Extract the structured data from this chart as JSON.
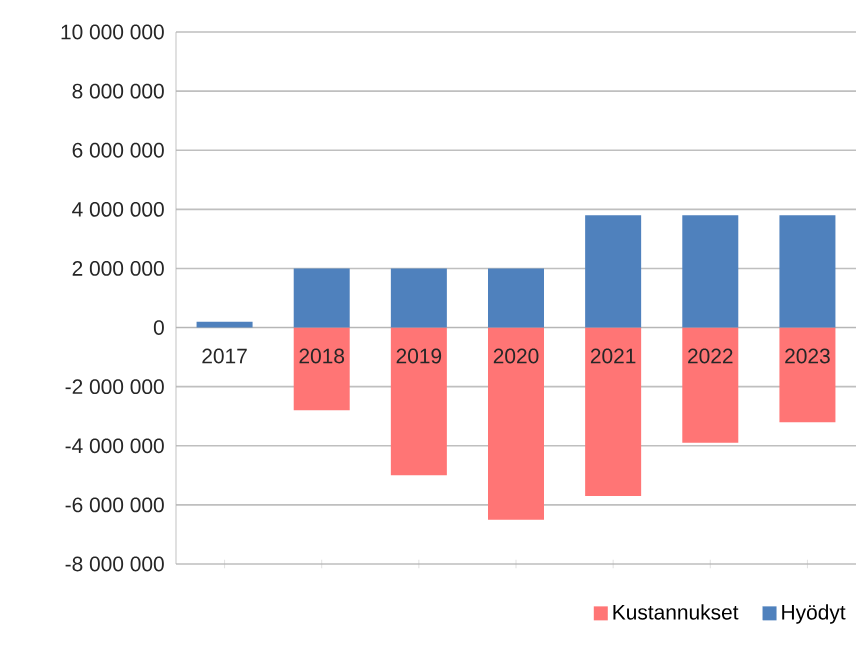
{
  "chart_data": {
    "type": "bar",
    "stacked": true,
    "categories": [
      "2017",
      "2018",
      "2019",
      "2020",
      "2021",
      "2022",
      "2023"
    ],
    "series": [
      {
        "name": "Kustannukset",
        "color": "#ff7575",
        "values": [
          0,
          -2800000,
          -5000000,
          -6500000,
          -5700000,
          -3900000,
          -3200000
        ]
      },
      {
        "name": "Hyödyt",
        "color": "#4f81bd",
        "values": [
          200000,
          2000000,
          2000000,
          2000000,
          3800000,
          3800000,
          3800000
        ]
      }
    ],
    "ylim": [
      -8000000,
      10000000
    ],
    "yticks": [
      {
        "value": -8000000,
        "label": "-8 000 000"
      },
      {
        "value": -6000000,
        "label": "-6 000 000"
      },
      {
        "value": -4000000,
        "label": "-4 000 000"
      },
      {
        "value": -2000000,
        "label": "-2 000 000"
      },
      0,
      {
        "value": 2000000,
        "label": "2 000 000"
      },
      {
        "value": 4000000,
        "label": "4 000 000"
      },
      {
        "value": 6000000,
        "label": "6 000 000"
      },
      {
        "value": 8000000,
        "label": "8 000 000"
      },
      {
        "value": 10000000,
        "label": "10 000 000"
      }
    ],
    "grid": "y",
    "legend": "bottom right"
  }
}
